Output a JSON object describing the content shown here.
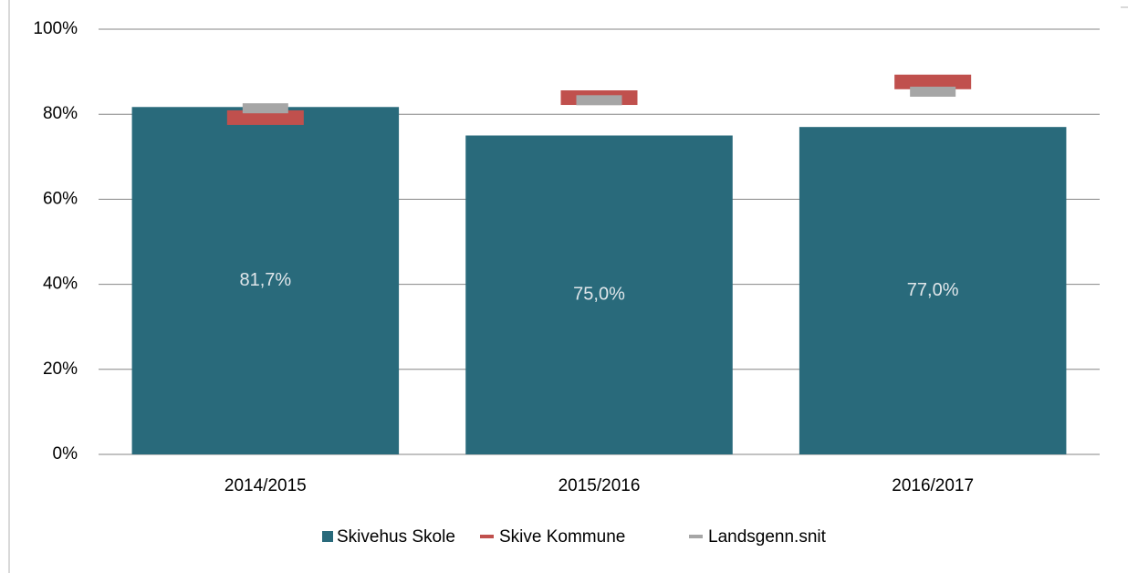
{
  "chart_data": {
    "type": "bar",
    "categories": [
      "2014/2015",
      "2015/2016",
      "2016/2017"
    ],
    "series": [
      {
        "name": "Skivehus Skole",
        "type": "bar",
        "color": "#296a7b",
        "values": [
          81.7,
          75.0,
          77.0
        ],
        "value_labels": [
          "81,7%",
          "75,0%",
          "77,0%"
        ]
      },
      {
        "name": "Skive Kommune",
        "type": "marker",
        "color": "#c0504d",
        "values": [
          79.2,
          83.9,
          87.6
        ]
      },
      {
        "name": "Landsgenn.snit",
        "type": "marker",
        "color": "#a6a6a6",
        "values": [
          81.4,
          83.3,
          85.3
        ]
      }
    ],
    "ylim": [
      0,
      100
    ],
    "yticks": [
      {
        "value": 0,
        "label": "0%"
      },
      {
        "value": 20,
        "label": "20%"
      },
      {
        "value": 40,
        "label": "40%"
      },
      {
        "value": 60,
        "label": "60%"
      },
      {
        "value": 80,
        "label": "80%"
      },
      {
        "value": 100,
        "label": "100%"
      }
    ],
    "grid": true,
    "legend": "bottom"
  }
}
